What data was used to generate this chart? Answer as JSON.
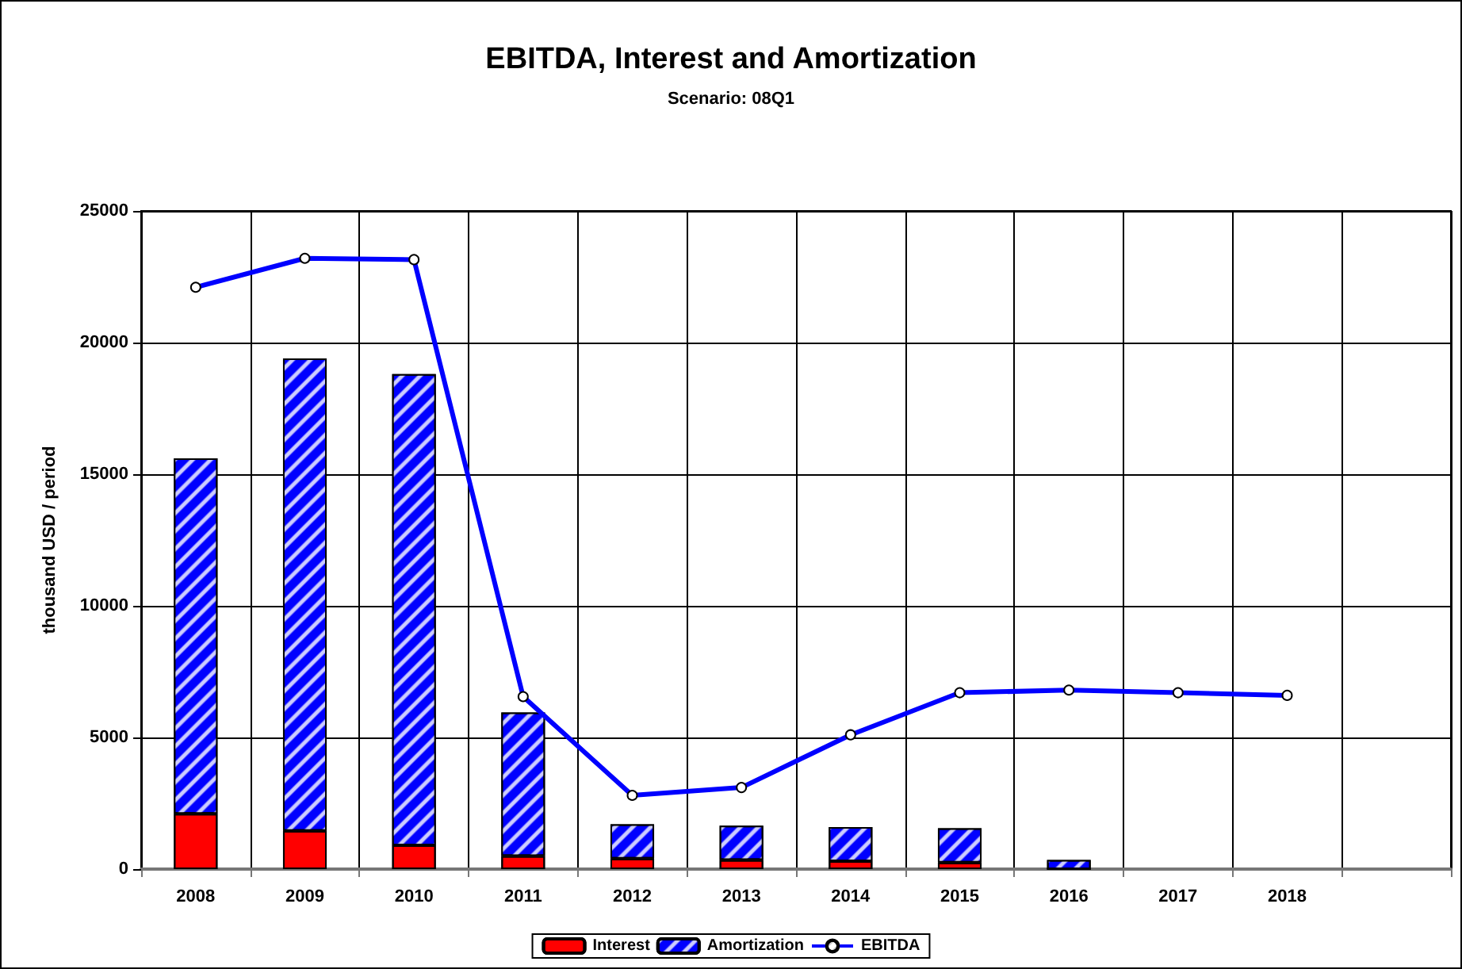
{
  "chart_data": {
    "type": "bar",
    "title": "EBITDA, Interest and Amortization",
    "subtitle": "Scenario: 08Q1",
    "ylabel": "thousand USD / period",
    "categories": [
      "2008",
      "2009",
      "2010",
      "2011",
      "2012",
      "2013",
      "2014",
      "2015",
      "2016",
      "2017",
      "2018",
      null
    ],
    "stacked": true,
    "series": [
      {
        "name": "Interest",
        "color": "#ff0000",
        "values": [
          2100,
          1450,
          900,
          500,
          400,
          350,
          300,
          250,
          0,
          null,
          null,
          null
        ]
      },
      {
        "name": "Amortization",
        "color": "#0000ff",
        "values": [
          13500,
          17950,
          17900,
          5450,
          1300,
          1300,
          1300,
          1300,
          350,
          null,
          null,
          null
        ]
      },
      {
        "name": "EBITDA",
        "type": "line",
        "color": "#0000ff",
        "marker": "circle",
        "values": [
          22100,
          23200,
          23150,
          6550,
          2800,
          3100,
          5100,
          6700,
          6800,
          6700,
          6600,
          null
        ]
      }
    ],
    "ylim": [
      0,
      25000
    ],
    "yticks": [
      0,
      5000,
      10000,
      15000,
      20000,
      25000
    ],
    "grid": true,
    "legend": "bottom"
  }
}
